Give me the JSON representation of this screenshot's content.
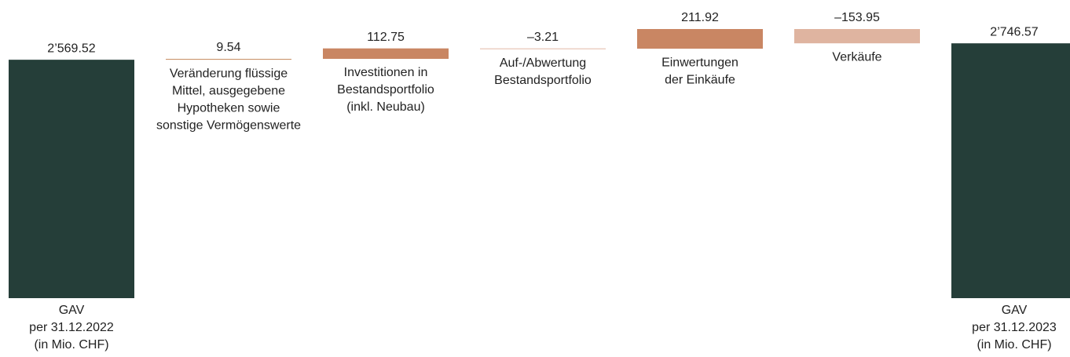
{
  "chart_data": {
    "type": "waterfall",
    "categories": [
      [
        "GAV",
        "per 31.12.2022",
        "(in Mio. CHF)"
      ],
      [
        "Veränderung flüssige",
        "Mittel, ausgegebene",
        "Hypotheken sowie",
        "sonstige Vermögenswerte"
      ],
      [
        "Investitionen in",
        "Bestandsportfolio",
        "(inkl. Neubau)"
      ],
      [
        "Auf-/Abwertung",
        "Bestandsportfolio"
      ],
      [
        "Einwertungen",
        "der Einkäufe"
      ],
      [
        "Verkäufe"
      ],
      [
        "GAV",
        "per 31.12.2023",
        "(in Mio. CHF)"
      ]
    ],
    "values": [
      2569.52,
      9.54,
      112.75,
      -3.21,
      211.92,
      -153.95,
      2746.57
    ],
    "value_labels": [
      "2’569.52",
      "9.54",
      "112.75",
      "–3.21",
      "211.92",
      "–153.95",
      "2’746.57"
    ],
    "colors": [
      "#253e39",
      "#c9946c",
      "#c98663",
      "#e3b9a5",
      "#c98663",
      "#dfb4a0",
      "#253e39"
    ]
  }
}
